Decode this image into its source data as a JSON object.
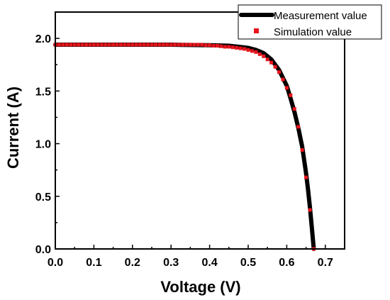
{
  "chart_data": {
    "type": "line",
    "xlabel": "Voltage  (V)",
    "ylabel": "Current  (A)",
    "xlim": [
      0,
      0.75
    ],
    "ylim": [
      0,
      2.25
    ],
    "xticks": [
      "0.0",
      "0.1",
      "0.2",
      "0.3",
      "0.4",
      "0.5",
      "0.6",
      "0.7"
    ],
    "yticks": [
      "0.0",
      "0.5",
      "1.0",
      "1.5",
      "2.0"
    ],
    "grid": false,
    "legend_position": "top-right",
    "colors": {
      "measurement": "#000000",
      "simulation": "#e8141c"
    },
    "series": [
      {
        "name": "Measurement value",
        "style": "thick-line",
        "x": [
          0.0,
          0.1,
          0.2,
          0.3,
          0.4,
          0.45,
          0.5,
          0.52,
          0.54,
          0.56,
          0.58,
          0.6,
          0.61,
          0.62,
          0.63,
          0.64,
          0.65,
          0.655,
          0.66,
          0.665,
          0.67
        ],
        "y": [
          1.94,
          1.94,
          1.94,
          1.94,
          1.935,
          1.93,
          1.91,
          1.89,
          1.86,
          1.8,
          1.7,
          1.55,
          1.43,
          1.3,
          1.15,
          0.97,
          0.72,
          0.57,
          0.4,
          0.2,
          0.0
        ]
      },
      {
        "name": "Simulation value",
        "style": "square-markers",
        "x": [
          0.0,
          0.01,
          0.02,
          0.03,
          0.04,
          0.05,
          0.06,
          0.07,
          0.08,
          0.09,
          0.1,
          0.11,
          0.12,
          0.13,
          0.14,
          0.15,
          0.16,
          0.17,
          0.18,
          0.19,
          0.2,
          0.21,
          0.22,
          0.23,
          0.24,
          0.25,
          0.26,
          0.27,
          0.28,
          0.29,
          0.3,
          0.31,
          0.32,
          0.33,
          0.34,
          0.35,
          0.36,
          0.37,
          0.38,
          0.39,
          0.4,
          0.41,
          0.42,
          0.43,
          0.44,
          0.45,
          0.46,
          0.47,
          0.48,
          0.49,
          0.5,
          0.51,
          0.52,
          0.53,
          0.54,
          0.55,
          0.56,
          0.57,
          0.58,
          0.59,
          0.6,
          0.61,
          0.62,
          0.63,
          0.64,
          0.65,
          0.66,
          0.67
        ],
        "y": [
          1.94,
          1.94,
          1.94,
          1.94,
          1.94,
          1.94,
          1.94,
          1.94,
          1.94,
          1.94,
          1.94,
          1.94,
          1.94,
          1.94,
          1.94,
          1.94,
          1.94,
          1.94,
          1.94,
          1.94,
          1.94,
          1.94,
          1.94,
          1.94,
          1.94,
          1.94,
          1.94,
          1.94,
          1.94,
          1.94,
          1.94,
          1.94,
          1.94,
          1.94,
          1.94,
          1.94,
          1.94,
          1.94,
          1.94,
          1.935,
          1.935,
          1.93,
          1.93,
          1.925,
          1.92,
          1.92,
          1.915,
          1.91,
          1.905,
          1.9,
          1.89,
          1.88,
          1.87,
          1.85,
          1.83,
          1.8,
          1.77,
          1.73,
          1.68,
          1.61,
          1.53,
          1.46,
          1.33,
          1.16,
          0.94,
          0.68,
          0.37,
          0.0
        ]
      }
    ]
  }
}
